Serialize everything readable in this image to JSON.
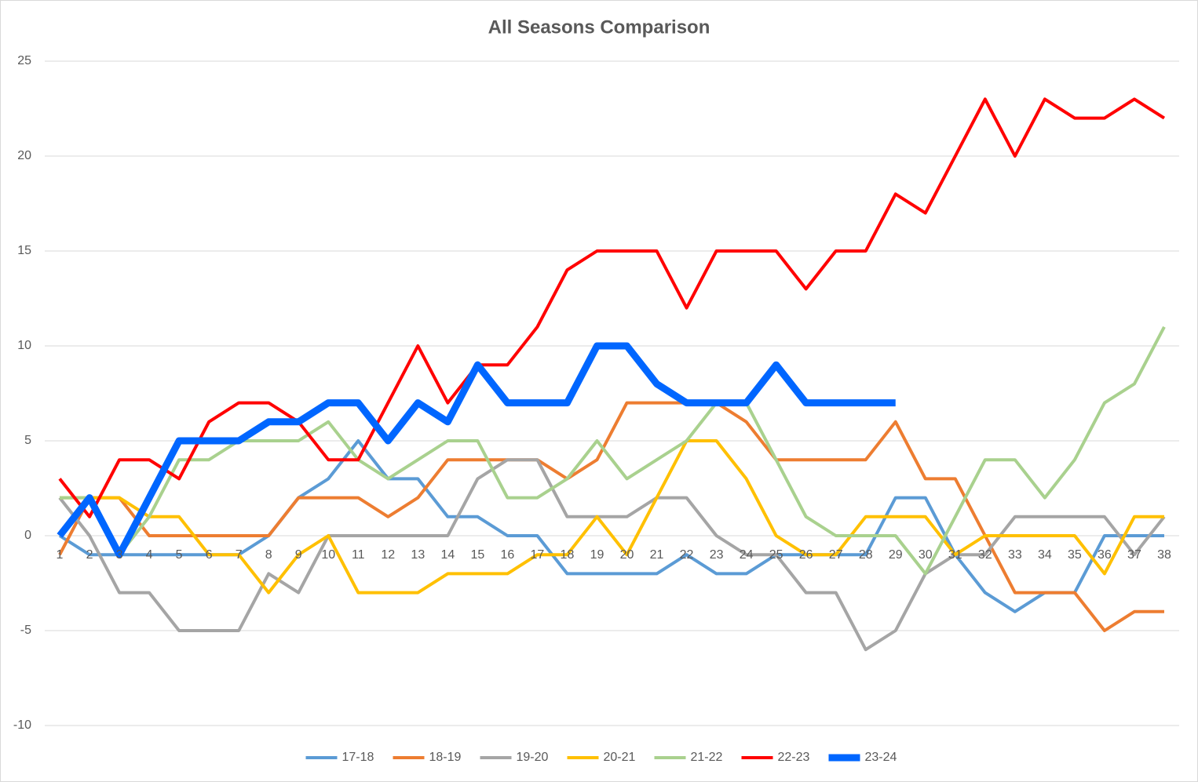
{
  "chart_data": {
    "type": "line",
    "title": "All Seasons Comparison",
    "categories": [
      "1",
      "2",
      "3",
      "4",
      "5",
      "6",
      "7",
      "8",
      "9",
      "10",
      "11",
      "12",
      "13",
      "14",
      "15",
      "16",
      "17",
      "18",
      "19",
      "20",
      "21",
      "22",
      "23",
      "24",
      "25",
      "26",
      "27",
      "28",
      "29",
      "30",
      "31",
      "32",
      "33",
      "34",
      "35",
      "36",
      "37",
      "38"
    ],
    "ylim": [
      -10,
      25
    ],
    "yticks": [
      -10,
      -5,
      0,
      5,
      10,
      15,
      20,
      25
    ],
    "grid": true,
    "legend": "bottom",
    "series": [
      {
        "name": "17-18",
        "color": "#5b9bd5",
        "width": 4,
        "values": [
          0,
          -1,
          -1,
          -1,
          -1,
          -1,
          -1,
          0,
          2,
          3,
          5,
          3,
          3,
          1,
          1,
          0,
          0,
          -2,
          -2,
          -2,
          -2,
          -1,
          -2,
          -2,
          -1,
          -1,
          -1,
          -1,
          2,
          2,
          -1,
          -3,
          -4,
          -3,
          -3,
          0,
          0,
          0
        ]
      },
      {
        "name": "18-19",
        "color": "#ed7d31",
        "width": 4,
        "values": [
          -1,
          2,
          2,
          0,
          0,
          0,
          0,
          0,
          2,
          2,
          2,
          1,
          2,
          4,
          4,
          4,
          4,
          3,
          4,
          7,
          7,
          7,
          7,
          6,
          4,
          4,
          4,
          4,
          6,
          3,
          3,
          0,
          -3,
          -3,
          -3,
          -5,
          -4,
          -4
        ]
      },
      {
        "name": "19-20",
        "color": "#a5a5a5",
        "width": 4,
        "values": [
          2,
          0,
          -3,
          -3,
          -5,
          -5,
          -5,
          -2,
          -3,
          0,
          0,
          0,
          0,
          0,
          3,
          4,
          4,
          1,
          1,
          1,
          2,
          2,
          0,
          -1,
          -1,
          -3,
          -3,
          -6,
          -5,
          -2,
          -1,
          -1,
          1,
          1,
          1,
          1,
          -1,
          1
        ]
      },
      {
        "name": "20-21",
        "color": "#ffc000",
        "width": 4,
        "values": [
          2,
          2,
          2,
          1,
          1,
          -1,
          -1,
          -3,
          -1,
          0,
          -3,
          -3,
          -3,
          -2,
          -2,
          -2,
          -1,
          -1,
          1,
          -1,
          2,
          5,
          5,
          3,
          0,
          -1,
          -1,
          1,
          1,
          1,
          -1,
          0,
          0,
          0,
          0,
          -2,
          1,
          1
        ]
      },
      {
        "name": "21-22",
        "color": "#a9d18e",
        "width": 4,
        "values": [
          2,
          2,
          -1,
          1,
          4,
          4,
          5,
          5,
          5,
          6,
          4,
          3,
          4,
          5,
          5,
          2,
          2,
          3,
          5,
          3,
          4,
          5,
          7,
          7,
          4,
          1,
          0,
          0,
          0,
          -2,
          1,
          4,
          4,
          2,
          4,
          7,
          8,
          11
        ]
      },
      {
        "name": "22-23",
        "color": "#ff0000",
        "width": 4,
        "values": [
          3,
          1,
          4,
          4,
          3,
          6,
          7,
          7,
          6,
          4,
          4,
          7,
          10,
          7,
          9,
          9,
          11,
          14,
          15,
          15,
          15,
          12,
          15,
          15,
          15,
          13,
          15,
          15,
          18,
          17,
          20,
          23,
          20,
          23,
          22,
          22,
          23,
          22
        ]
      },
      {
        "name": "23-24",
        "color": "#0066ff",
        "width": 9,
        "values": [
          0,
          2,
          -1,
          2,
          5,
          5,
          5,
          6,
          6,
          7,
          7,
          5,
          7,
          6,
          9,
          7,
          7,
          7,
          10,
          10,
          8,
          7,
          7,
          7,
          9,
          7,
          7,
          7,
          7,
          null,
          null,
          null,
          null,
          null,
          null,
          null,
          null,
          null
        ]
      }
    ]
  }
}
